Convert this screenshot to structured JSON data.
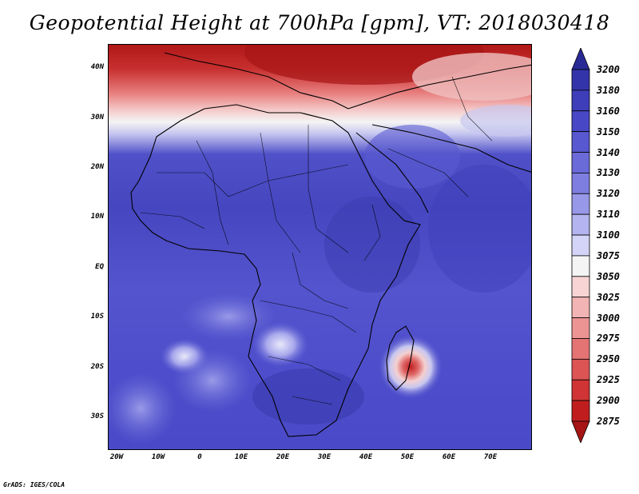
{
  "title": "Geopotential Height at 700hPa [gpm], VT: 2018030418",
  "credit": "GrADS: IGES/COLA",
  "latitude_labels": [
    "40N",
    "30N",
    "20N",
    "10N",
    "EQ",
    "10S",
    "20S",
    "30S"
  ],
  "longitude_labels": [
    "20W",
    "10W",
    "0",
    "10E",
    "20E",
    "30E",
    "40E",
    "50E",
    "60E",
    "70E"
  ],
  "colorbar": {
    "labels": [
      "3200",
      "3180",
      "3160",
      "3150",
      "3140",
      "3130",
      "3120",
      "3110",
      "3100",
      "3075",
      "3050",
      "3025",
      "3000",
      "2975",
      "2950",
      "2925",
      "2900",
      "2875"
    ],
    "colors": [
      "#2a2a96",
      "#3434aa",
      "#3e3eba",
      "#4848c6",
      "#5858d0",
      "#6a6ad8",
      "#7e7ee0",
      "#9898e8",
      "#b4b4f0",
      "#d4d4f8",
      "#f4f4f4",
      "#f8d4d4",
      "#f2b4b4",
      "#ec9494",
      "#e47474",
      "#dc5454",
      "#d03434",
      "#c01e1e",
      "#a61414"
    ]
  },
  "map": {
    "extent": {
      "lon": [
        -22,
        80
      ],
      "lat": [
        -37,
        45
      ]
    },
    "cyclone_center": {
      "lon": 51.2,
      "lat": -19.1
    }
  }
}
